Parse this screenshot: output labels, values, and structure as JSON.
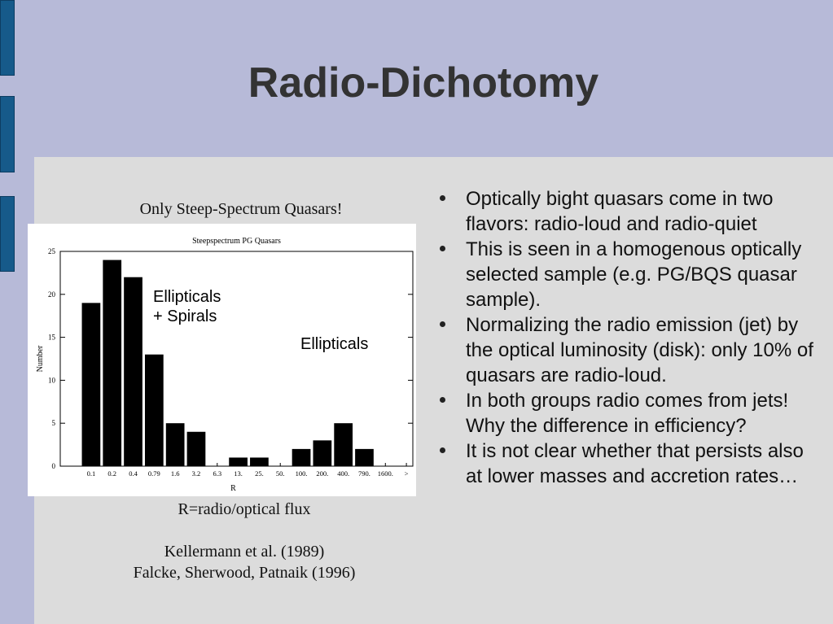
{
  "slide": {
    "title": "Radio-Dichotomy"
  },
  "left": {
    "caption_top": "Only Steep-Spectrum Quasars!",
    "caption_axis": "R=radio/optical flux",
    "ref_1": "Kellermann et al. (1989)",
    "ref_2": "Falcke, Sherwood, Patnaik (1996)",
    "annotation_1_line1": "Ellipticals",
    "annotation_1_line2": "+ Spirals",
    "annotation_2": "Ellipticals"
  },
  "bullets": [
    "Optically bight quasars come in two flavors: radio-loud and radio-quiet",
    "This is seen in a homogenous optically selected sample (e.g. PG/BQS quasar sample).",
    "Normalizing the radio emission (jet) by the optical luminosity (disk): only 10% of quasars are radio-loud.",
    "In both groups radio comes from jets! Why the difference in efficiency?",
    "It is not clear whether that persists also at lower masses and accretion rates…"
  ],
  "chart_data": {
    "type": "bar",
    "title": "Steepspectrum PG Quasars",
    "xlabel": "R",
    "ylabel": "Number",
    "categories": [
      "0.1",
      "0.2",
      "0.4",
      "0.79",
      "1.6",
      "3.2",
      "6.3",
      "13.",
      "25.",
      "50.",
      "100.",
      "200.",
      "400.",
      "790.",
      "1600.",
      ">"
    ],
    "values": [
      19,
      24,
      22,
      13,
      5,
      4,
      0,
      1,
      1,
      0,
      2,
      3,
      5,
      2,
      0,
      0
    ],
    "yticks": [
      0,
      5,
      10,
      15,
      20,
      25
    ],
    "ylim": [
      0,
      25
    ],
    "bar_color": "#000000"
  }
}
